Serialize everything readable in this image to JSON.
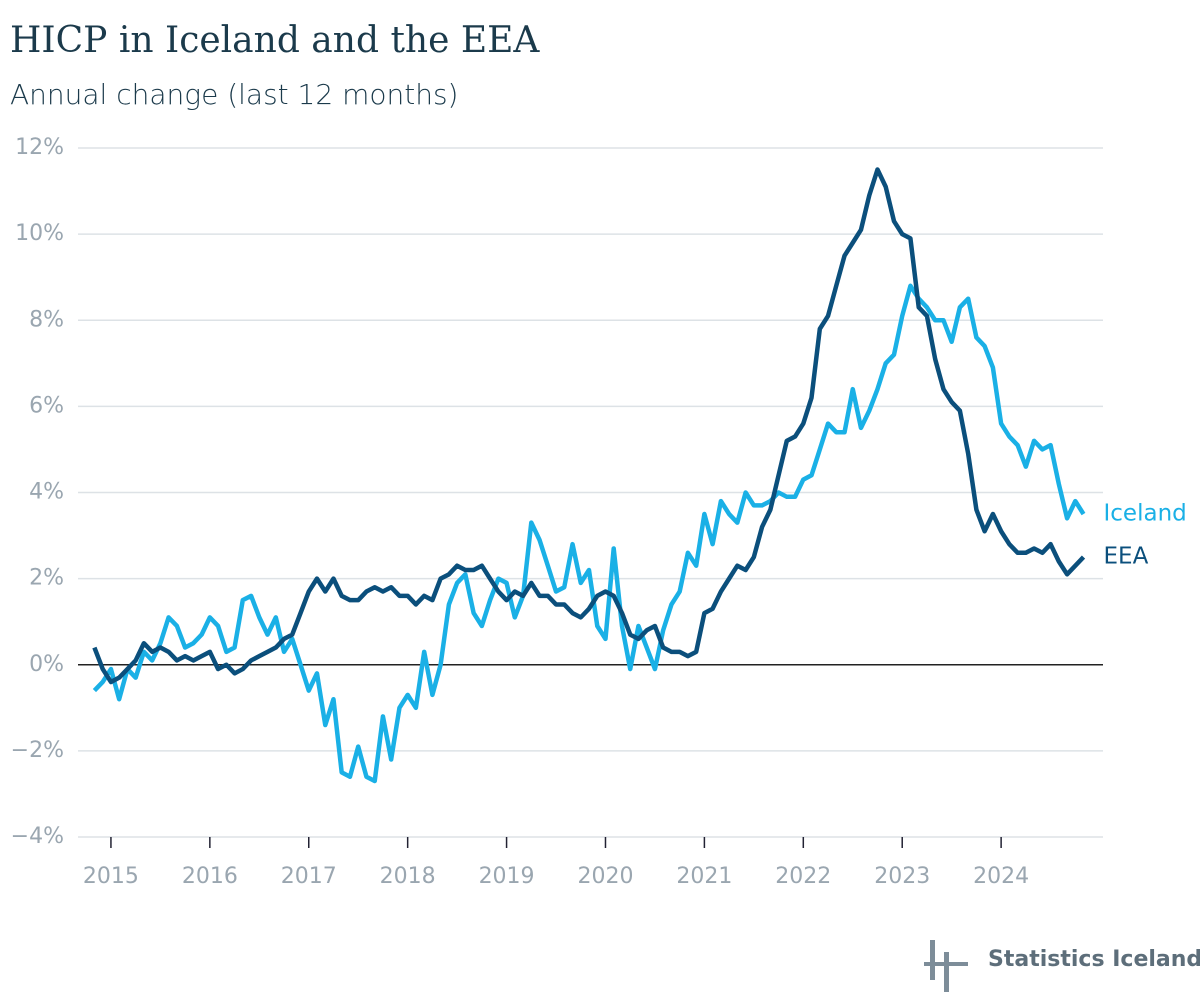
{
  "chart_data": {
    "type": "line",
    "title": "HICP in Iceland and the EEA",
    "subtitle": "Annual change (last 12 months)",
    "source": "Statistics Iceland",
    "xlim": [
      2014.667,
      2025.03
    ],
    "xticks": [
      2015,
      2016,
      2017,
      2018,
      2019,
      2020,
      2021,
      2022,
      2023,
      2024
    ],
    "ylim": [
      -4,
      12
    ],
    "yticks": [
      {
        "value": -4,
        "label": "−4%"
      },
      {
        "value": -2,
        "label": "−2%"
      },
      {
        "value": 0,
        "label": "0%"
      },
      {
        "value": 2,
        "label": "2%"
      },
      {
        "value": 4,
        "label": "4%"
      },
      {
        "value": 6,
        "label": "6%"
      },
      {
        "value": 8,
        "label": "8%"
      },
      {
        "value": 10,
        "label": "10%"
      },
      {
        "value": 12,
        "label": "12%"
      }
    ],
    "grid": true,
    "x": [
      2014.833,
      2014.917,
      2015,
      2015.083,
      2015.167,
      2015.25,
      2015.333,
      2015.417,
      2015.5,
      2015.583,
      2015.667,
      2015.75,
      2015.833,
      2015.917,
      2016,
      2016.083,
      2016.167,
      2016.25,
      2016.333,
      2016.417,
      2016.5,
      2016.583,
      2016.667,
      2016.75,
      2016.833,
      2016.917,
      2017,
      2017.083,
      2017.167,
      2017.25,
      2017.333,
      2017.417,
      2017.5,
      2017.583,
      2017.667,
      2017.75,
      2017.833,
      2017.917,
      2018,
      2018.083,
      2018.167,
      2018.25,
      2018.333,
      2018.417,
      2018.5,
      2018.583,
      2018.667,
      2018.75,
      2018.833,
      2018.917,
      2019,
      2019.083,
      2019.167,
      2019.25,
      2019.333,
      2019.417,
      2019.5,
      2019.583,
      2019.667,
      2019.75,
      2019.833,
      2019.917,
      2020,
      2020.083,
      2020.167,
      2020.25,
      2020.333,
      2020.417,
      2020.5,
      2020.583,
      2020.667,
      2020.75,
      2020.833,
      2020.917,
      2021,
      2021.083,
      2021.167,
      2021.25,
      2021.333,
      2021.417,
      2021.5,
      2021.583,
      2021.667,
      2021.75,
      2021.833,
      2021.917,
      2022,
      2022.083,
      2022.167,
      2022.25,
      2022.333,
      2022.417,
      2022.5,
      2022.583,
      2022.667,
      2022.75,
      2022.833,
      2022.917,
      2023,
      2023.083,
      2023.167,
      2023.25,
      2023.333,
      2023.417,
      2023.5,
      2023.583,
      2023.667,
      2023.75,
      2023.833,
      2023.917,
      2024,
      2024.083,
      2024.167,
      2024.25,
      2024.333,
      2024.417,
      2024.5,
      2024.583,
      2024.667,
      2024.75,
      2024.833
    ],
    "series": [
      {
        "name": "Iceland",
        "color": "#1ab0e6",
        "values": [
          -0.6,
          -0.4,
          -0.1,
          -0.8,
          -0.1,
          -0.3,
          0.3,
          0.1,
          0.5,
          1.1,
          0.9,
          0.4,
          0.5,
          0.7,
          1.1,
          0.9,
          0.3,
          0.4,
          1.5,
          1.6,
          1.1,
          0.7,
          1.1,
          0.3,
          0.6,
          0.0,
          -0.6,
          -0.2,
          -1.4,
          -0.8,
          -2.5,
          -2.6,
          -1.9,
          -2.6,
          -2.7,
          -1.2,
          -2.2,
          -1.0,
          -0.7,
          -1.0,
          0.3,
          -0.7,
          0.0,
          1.4,
          1.9,
          2.1,
          1.2,
          0.9,
          1.5,
          2.0,
          1.9,
          1.1,
          1.6,
          3.3,
          2.9,
          2.3,
          1.7,
          1.8,
          2.8,
          1.9,
          2.2,
          0.9,
          0.6,
          2.7,
          0.9,
          -0.1,
          0.9,
          0.4,
          -0.1,
          0.8,
          1.4,
          1.7,
          2.6,
          2.3,
          3.5,
          2.8,
          3.8,
          3.5,
          3.3,
          4.0,
          3.7,
          3.7,
          3.8,
          4.0,
          3.9,
          3.9,
          4.3,
          4.4,
          5.0,
          5.6,
          5.4,
          5.4,
          6.4,
          5.5,
          5.9,
          6.4,
          7.0,
          7.2,
          8.1,
          8.8,
          8.5,
          8.3,
          8.0,
          8.0,
          7.5,
          8.3,
          8.5,
          7.6,
          7.4,
          6.9,
          5.6,
          5.3,
          5.1,
          4.6,
          5.2,
          5.0,
          5.1,
          4.2,
          3.4,
          3.8,
          3.5
        ]
      },
      {
        "name": "EEA",
        "color": "#0b4f7c",
        "values": [
          0.4,
          -0.1,
          -0.4,
          -0.3,
          -0.1,
          0.1,
          0.5,
          0.3,
          0.4,
          0.3,
          0.1,
          0.2,
          0.1,
          0.2,
          0.3,
          -0.1,
          0.0,
          -0.2,
          -0.1,
          0.1,
          0.2,
          0.3,
          0.4,
          0.6,
          0.7,
          1.2,
          1.7,
          2.0,
          1.7,
          2.0,
          1.6,
          1.5,
          1.5,
          1.7,
          1.8,
          1.7,
          1.8,
          1.6,
          1.6,
          1.4,
          1.6,
          1.5,
          2.0,
          2.1,
          2.3,
          2.2,
          2.2,
          2.3,
          2.0,
          1.7,
          1.5,
          1.7,
          1.6,
          1.9,
          1.6,
          1.6,
          1.4,
          1.4,
          1.2,
          1.1,
          1.3,
          1.6,
          1.7,
          1.6,
          1.2,
          0.7,
          0.6,
          0.8,
          0.9,
          0.4,
          0.3,
          0.3,
          0.2,
          0.3,
          1.2,
          1.3,
          1.7,
          2.0,
          2.3,
          2.2,
          2.5,
          3.2,
          3.6,
          4.4,
          5.2,
          5.3,
          5.6,
          6.2,
          7.8,
          8.1,
          8.8,
          9.5,
          9.8,
          10.1,
          10.9,
          11.5,
          11.1,
          10.3,
          10.0,
          9.9,
          8.3,
          8.1,
          7.1,
          6.4,
          6.1,
          5.9,
          4.9,
          3.6,
          3.1,
          3.5,
          3.1,
          2.8,
          2.6,
          2.6,
          2.7,
          2.6,
          2.8,
          2.4,
          2.1,
          2.3,
          2.5
        ]
      }
    ]
  }
}
